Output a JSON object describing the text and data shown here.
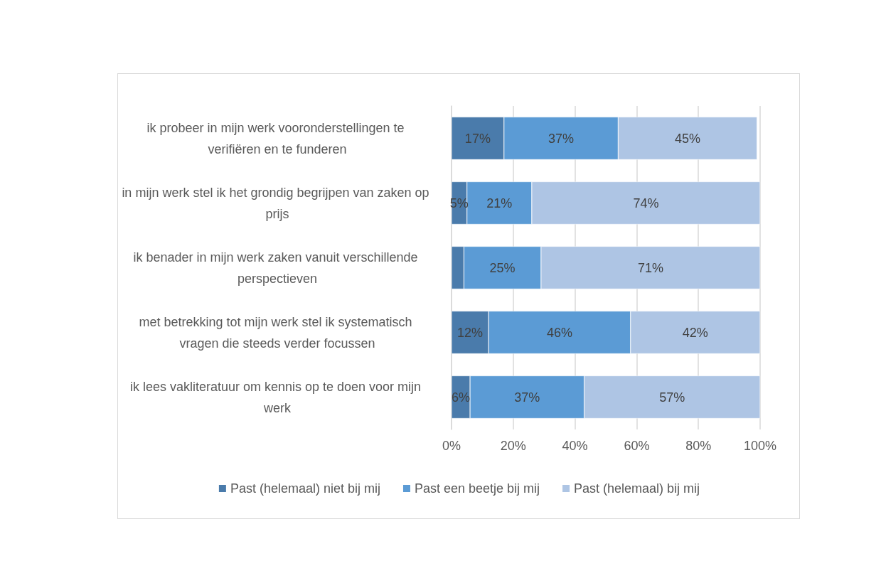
{
  "chart_data": {
    "type": "bar",
    "orientation": "horizontal",
    "stacked": true,
    "categories": [
      "ik probeer in mijn werk vooronderstellingen te verifiëren en te funderen",
      "in mijn werk stel ik het grondig begrijpen van zaken op prijs",
      "ik benader in mijn werk zaken vanuit verschillende perspectieven",
      "met betrekking tot mijn werk stel ik systematisch vragen die steeds verder focussen",
      "ik lees vakliteratuur om kennis op te doen voor mijn werk"
    ],
    "series": [
      {
        "name": "Past (helemaal) niet bij mij",
        "color": "#4a7bab",
        "values": [
          17,
          5,
          4,
          12,
          6
        ],
        "value_labels": [
          "17%",
          "5%",
          null,
          "12%",
          "6%"
        ]
      },
      {
        "name": "Past een beetje bij mij",
        "color": "#5b9bd5",
        "values": [
          37,
          21,
          25,
          46,
          37
        ],
        "value_labels": [
          "37%",
          "21%",
          "25%",
          "46%",
          "37%"
        ]
      },
      {
        "name": "Past (helemaal) bij mij",
        "color": "#aec5e4",
        "values": [
          45,
          74,
          71,
          42,
          57
        ],
        "value_labels": [
          "45%",
          "74%",
          "71%",
          "42%",
          "57%"
        ]
      }
    ],
    "xlim": [
      0,
      100
    ],
    "xticks": [
      {
        "value": 0,
        "label": "0%"
      },
      {
        "value": 20,
        "label": "20%"
      },
      {
        "value": 40,
        "label": "40%"
      },
      {
        "value": 60,
        "label": "60%"
      },
      {
        "value": 80,
        "label": "80%"
      },
      {
        "value": 100,
        "label": "100%"
      }
    ],
    "grid": "x",
    "legend": "bottom"
  }
}
